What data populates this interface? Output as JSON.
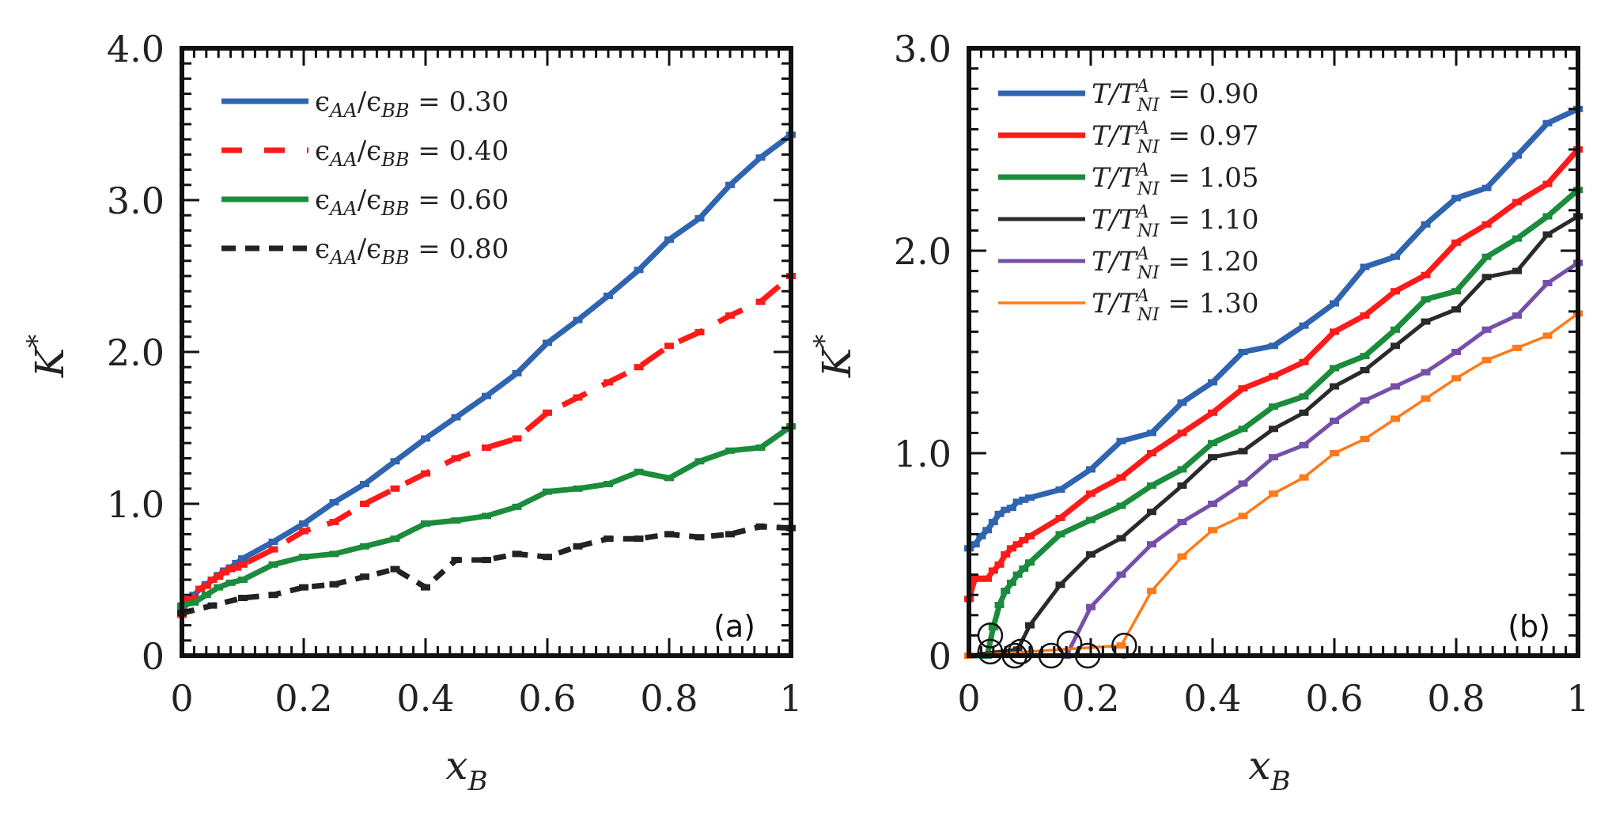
{
  "chart_data": [
    {
      "type": "line",
      "panel_label": "(a)",
      "xlabel": "x_B",
      "ylabel": "K*",
      "xlim": [
        0,
        1
      ],
      "ylim": [
        0,
        4.0
      ],
      "x_ticks": [
        0,
        0.2,
        0.4,
        0.6,
        0.8,
        1
      ],
      "x_tick_labels": [
        "0",
        "0.2",
        "0.4",
        "0.6",
        "0.8",
        "1"
      ],
      "y_ticks": [
        0,
        1.0,
        2.0,
        3.0,
        4.0
      ],
      "y_tick_labels": [
        "0",
        "1.0",
        "2.0",
        "3.0",
        "4.0"
      ],
      "grid": false,
      "legend_position": "top-left",
      "series": [
        {
          "name": "ϵ_AA/ϵ_BB = 0.30",
          "label_main": "ϵ",
          "label_sub1": "AA",
          "label_mid": "/ϵ",
          "label_sub2": "BB",
          "label_value": " = 0.30",
          "color": "#2f64b0",
          "dash": "solid",
          "x": [
            0,
            0.01,
            0.02,
            0.03,
            0.04,
            0.05,
            0.06,
            0.07,
            0.08,
            0.09,
            0.1,
            0.15,
            0.2,
            0.25,
            0.3,
            0.35,
            0.4,
            0.45,
            0.5,
            0.55,
            0.6,
            0.65,
            0.7,
            0.75,
            0.8,
            0.85,
            0.9,
            0.95,
            1.0
          ],
          "y": [
            0.32,
            0.36,
            0.4,
            0.44,
            0.47,
            0.5,
            0.53,
            0.56,
            0.58,
            0.61,
            0.64,
            0.75,
            0.87,
            1.01,
            1.13,
            1.28,
            1.43,
            1.57,
            1.71,
            1.86,
            2.06,
            2.21,
            2.37,
            2.54,
            2.74,
            2.88,
            3.1,
            3.28,
            3.43
          ]
        },
        {
          "name": "ϵ_AA/ϵ_BB = 0.40",
          "label_main": "ϵ",
          "label_sub1": "AA",
          "label_mid": "/ϵ",
          "label_sub2": "BB",
          "label_value": " = 0.40",
          "color": "#ff1a1a",
          "dash": "long-dash",
          "x": [
            0,
            0.01,
            0.02,
            0.03,
            0.04,
            0.05,
            0.06,
            0.07,
            0.08,
            0.09,
            0.1,
            0.15,
            0.2,
            0.25,
            0.3,
            0.35,
            0.4,
            0.45,
            0.5,
            0.55,
            0.6,
            0.65,
            0.7,
            0.75,
            0.8,
            0.85,
            0.9,
            0.95,
            1.0
          ],
          "y": [
            0.27,
            0.37,
            0.38,
            0.44,
            0.46,
            0.5,
            0.52,
            0.55,
            0.57,
            0.58,
            0.6,
            0.7,
            0.82,
            0.88,
            1.0,
            1.1,
            1.2,
            1.3,
            1.37,
            1.43,
            1.6,
            1.7,
            1.8,
            1.9,
            2.04,
            2.13,
            2.24,
            2.33,
            2.5
          ]
        },
        {
          "name": "ϵ_AA/ϵ_BB = 0.60",
          "label_main": "ϵ",
          "label_sub1": "AA",
          "label_mid": "/ϵ",
          "label_sub2": "BB",
          "label_value": " = 0.60",
          "color": "#1a8c3c",
          "dash": "solid",
          "x": [
            0,
            0.02,
            0.04,
            0.06,
            0.08,
            0.1,
            0.15,
            0.2,
            0.25,
            0.3,
            0.35,
            0.4,
            0.45,
            0.5,
            0.55,
            0.6,
            0.65,
            0.7,
            0.75,
            0.8,
            0.85,
            0.9,
            0.95,
            1.0
          ],
          "y": [
            0.33,
            0.35,
            0.4,
            0.45,
            0.48,
            0.5,
            0.6,
            0.65,
            0.67,
            0.72,
            0.77,
            0.87,
            0.89,
            0.92,
            0.98,
            1.08,
            1.1,
            1.13,
            1.21,
            1.17,
            1.28,
            1.35,
            1.37,
            1.51
          ]
        },
        {
          "name": "ϵ_AA/ϵ_BB = 0.80",
          "label_main": "ϵ",
          "label_sub1": "AA",
          "label_mid": "/ϵ",
          "label_sub2": "BB",
          "label_value": " = 0.80",
          "color": "#222222",
          "dash": "short-dash",
          "x": [
            0,
            0.05,
            0.1,
            0.15,
            0.2,
            0.25,
            0.3,
            0.35,
            0.4,
            0.45,
            0.5,
            0.55,
            0.6,
            0.65,
            0.7,
            0.75,
            0.8,
            0.85,
            0.9,
            0.95,
            1.0
          ],
          "y": [
            0.28,
            0.33,
            0.38,
            0.4,
            0.45,
            0.47,
            0.52,
            0.57,
            0.45,
            0.63,
            0.63,
            0.67,
            0.65,
            0.72,
            0.77,
            0.77,
            0.8,
            0.78,
            0.8,
            0.85,
            0.84
          ]
        }
      ]
    },
    {
      "type": "line",
      "panel_label": "(b)",
      "xlabel": "x_B",
      "ylabel": "K*",
      "xlim": [
        0,
        1
      ],
      "ylim": [
        0,
        3.0
      ],
      "x_ticks": [
        0,
        0.2,
        0.4,
        0.6,
        0.8,
        1
      ],
      "x_tick_labels": [
        "0",
        "0.2",
        "0.4",
        "0.6",
        "0.8",
        "1"
      ],
      "y_ticks": [
        0,
        1.0,
        2.0,
        3.0
      ],
      "y_tick_labels": [
        "0",
        "1.0",
        "2.0",
        "3.0"
      ],
      "grid": false,
      "legend_position": "top-left",
      "annotation": "open circles mark onset points near K* = 0 at low x_B",
      "onset_markers": [
        {
          "x": 0.035,
          "y": 0.1
        },
        {
          "x": 0.035,
          "y": 0.02
        },
        {
          "x": 0.075,
          "y": 0.0
        },
        {
          "x": 0.085,
          "y": 0.02
        },
        {
          "x": 0.135,
          "y": 0.0
        },
        {
          "x": 0.165,
          "y": 0.06
        },
        {
          "x": 0.195,
          "y": 0.0
        },
        {
          "x": 0.255,
          "y": 0.05
        }
      ],
      "series": [
        {
          "name": "T/T^A_NI = 0.90",
          "label_value": " = 0.90",
          "color": "#2f64b0",
          "width": "thick",
          "x": [
            0,
            0.01,
            0.02,
            0.03,
            0.04,
            0.05,
            0.06,
            0.07,
            0.08,
            0.09,
            0.1,
            0.15,
            0.2,
            0.25,
            0.3,
            0.35,
            0.4,
            0.45,
            0.5,
            0.55,
            0.6,
            0.65,
            0.7,
            0.75,
            0.8,
            0.85,
            0.9,
            0.95,
            1.0
          ],
          "y": [
            0.53,
            0.55,
            0.59,
            0.62,
            0.66,
            0.7,
            0.72,
            0.73,
            0.76,
            0.77,
            0.78,
            0.82,
            0.92,
            1.06,
            1.1,
            1.25,
            1.35,
            1.5,
            1.53,
            1.63,
            1.74,
            1.92,
            1.97,
            2.13,
            2.26,
            2.31,
            2.47,
            2.63,
            2.7
          ]
        },
        {
          "name": "T/T^A_NI = 0.97",
          "label_value": " = 0.97",
          "color": "#ff1a1a",
          "width": "thick",
          "x": [
            0,
            0.01,
            0.02,
            0.03,
            0.04,
            0.05,
            0.06,
            0.07,
            0.08,
            0.09,
            0.1,
            0.15,
            0.2,
            0.25,
            0.3,
            0.35,
            0.4,
            0.45,
            0.5,
            0.55,
            0.6,
            0.65,
            0.7,
            0.75,
            0.8,
            0.85,
            0.9,
            0.95,
            1.0
          ],
          "y": [
            0.28,
            0.38,
            0.38,
            0.38,
            0.42,
            0.45,
            0.5,
            0.53,
            0.55,
            0.57,
            0.59,
            0.68,
            0.8,
            0.88,
            1.0,
            1.1,
            1.2,
            1.32,
            1.38,
            1.45,
            1.6,
            1.68,
            1.8,
            1.88,
            2.04,
            2.13,
            2.24,
            2.33,
            2.5
          ]
        },
        {
          "name": "T/T^A_NI = 1.05",
          "label_value": " = 1.05",
          "color": "#1a8c3c",
          "width": "thick",
          "x": [
            0,
            0.03,
            0.04,
            0.05,
            0.06,
            0.07,
            0.08,
            0.09,
            0.1,
            0.15,
            0.2,
            0.25,
            0.3,
            0.35,
            0.4,
            0.45,
            0.5,
            0.55,
            0.6,
            0.65,
            0.7,
            0.75,
            0.8,
            0.85,
            0.9,
            0.95,
            1.0
          ],
          "y": [
            0.0,
            0.0,
            0.14,
            0.25,
            0.32,
            0.36,
            0.4,
            0.43,
            0.46,
            0.6,
            0.67,
            0.74,
            0.84,
            0.92,
            1.05,
            1.12,
            1.23,
            1.28,
            1.42,
            1.48,
            1.61,
            1.76,
            1.8,
            1.97,
            2.06,
            2.17,
            2.3
          ]
        },
        {
          "name": "T/T^A_NI = 1.10",
          "label_value": " = 1.10",
          "color": "#2a2a2a",
          "width": "medium",
          "x": [
            0,
            0.08,
            0.1,
            0.15,
            0.2,
            0.25,
            0.3,
            0.35,
            0.4,
            0.45,
            0.5,
            0.55,
            0.6,
            0.65,
            0.7,
            0.75,
            0.8,
            0.85,
            0.9,
            0.95,
            1.0
          ],
          "y": [
            0.0,
            0.03,
            0.15,
            0.35,
            0.5,
            0.58,
            0.71,
            0.84,
            0.98,
            1.01,
            1.12,
            1.2,
            1.33,
            1.41,
            1.53,
            1.65,
            1.71,
            1.87,
            1.9,
            2.08,
            2.17
          ]
        },
        {
          "name": "T/T^A_NI = 1.20",
          "label_value": " = 1.20",
          "color": "#7550a8",
          "width": "medium",
          "x": [
            0,
            0.16,
            0.2,
            0.25,
            0.3,
            0.35,
            0.4,
            0.45,
            0.5,
            0.55,
            0.6,
            0.65,
            0.7,
            0.75,
            0.8,
            0.85,
            0.9,
            0.95,
            1.0
          ],
          "y": [
            0.0,
            0.0,
            0.24,
            0.4,
            0.55,
            0.66,
            0.75,
            0.85,
            0.98,
            1.04,
            1.16,
            1.26,
            1.33,
            1.4,
            1.5,
            1.61,
            1.68,
            1.84,
            1.94
          ]
        },
        {
          "name": "T/T^A_NI = 1.30",
          "label_value": " = 1.30",
          "color": "#ff7a1a",
          "width": "thin",
          "x": [
            0,
            0.25,
            0.3,
            0.35,
            0.4,
            0.45,
            0.5,
            0.55,
            0.6,
            0.65,
            0.7,
            0.75,
            0.8,
            0.85,
            0.9,
            0.95,
            1.0
          ],
          "y": [
            0.0,
            0.05,
            0.32,
            0.49,
            0.62,
            0.69,
            0.8,
            0.88,
            1.0,
            1.07,
            1.17,
            1.27,
            1.37,
            1.46,
            1.52,
            1.58,
            1.69
          ]
        }
      ]
    }
  ],
  "legend_b_prefix": "T/T",
  "legend_b_sup": "A",
  "legend_b_sub": "NI",
  "xlabel_main": "x",
  "xlabel_sub": "B",
  "ylabel_main": "K",
  "ylabel_sup": "*"
}
